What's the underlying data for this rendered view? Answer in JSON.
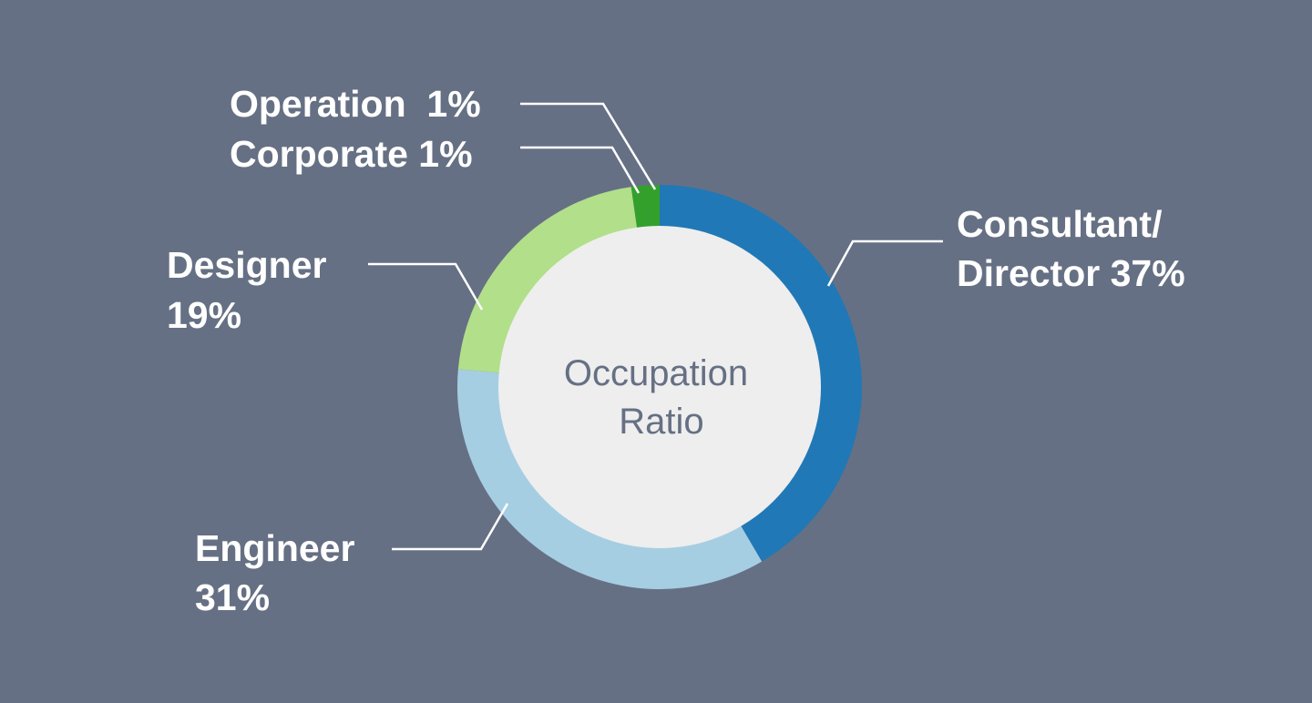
{
  "chart_data": {
    "type": "pie",
    "title": "",
    "center_label": [
      "Occupation",
      "Ratio"
    ],
    "slices": [
      {
        "name": "Consultant/ Director",
        "label_lines": [
          "Consultant/",
          "Director 37%"
        ],
        "value": 37,
        "color": "#2178b6"
      },
      {
        "name": "Engineer",
        "label_lines": [
          "Engineer",
          "31%"
        ],
        "value": 31,
        "color": "#a6cee3"
      },
      {
        "name": "Designer",
        "label_lines": [
          "Designer",
          "19%"
        ],
        "value": 19,
        "color": "#b2df8a"
      },
      {
        "name": "Corporate",
        "label_lines": [
          "Corporate 1%"
        ],
        "value": 1,
        "color": "#33a02c"
      },
      {
        "name": "Operation",
        "label_lines": [
          "Operation  1%"
        ],
        "value": 1,
        "color": "#33a02c"
      }
    ],
    "background": "#667084",
    "center_fill": "#eeeeee",
    "text_color": "#ffffff",
    "center_text_color": "#667084"
  }
}
